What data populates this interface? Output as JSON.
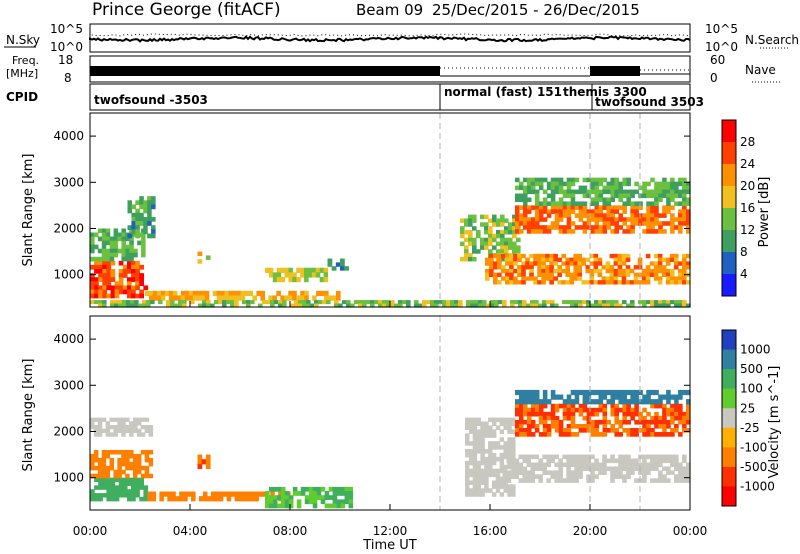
{
  "header": {
    "station": "Prince George (fitACF)",
    "beam_label": "Beam 09",
    "date_range": "25/Dec/2015 - 26/Dec/2015"
  },
  "side_labels": {
    "nsky": "N.Sky",
    "nsearch": "N.Search",
    "freq": "Freq.",
    "freq_unit": "[MHz]",
    "nave": "Nave",
    "cpid": "CPID"
  },
  "noise_panel": {
    "left_ticks": [
      "10^5",
      "10^0"
    ],
    "right_ticks": [
      "10^5",
      "10^0"
    ]
  },
  "freq_panel": {
    "left_ticks": [
      "18",
      "8"
    ],
    "right_ticks": [
      "60",
      "0"
    ]
  },
  "cpid_panel": {
    "segments": [
      {
        "label": "twofsound -3503",
        "start_hour": 0,
        "end_hour": 14
      },
      {
        "label": "normal (fast) 151",
        "start_hour": 14,
        "end_hour": 20
      },
      {
        "label": "themis 3300",
        "start_hour": 20,
        "end_hour": 22
      },
      {
        "label": "twofsound 3503",
        "start_hour": 20,
        "end_hour": 24
      }
    ]
  },
  "x_axis": {
    "ticks": [
      "00:00",
      "04:00",
      "08:00",
      "12:00",
      "16:00",
      "20:00",
      "00:00"
    ],
    "label": "Time UT"
  },
  "chart_data": [
    {
      "type": "heatmap",
      "title": "",
      "xlabel": "Time UT",
      "ylabel": "Slant Range [km]",
      "xlim": [
        0,
        24
      ],
      "ylim": [
        300,
        4500
      ],
      "yticks": [
        "1000",
        "2000",
        "3000",
        "4000"
      ],
      "colorbar": {
        "label": "Power [dB]",
        "ticks": [
          "4",
          "8",
          "12",
          "16",
          "20",
          "24",
          "28"
        ],
        "colors": [
          "#1a1aff",
          "#2060c0",
          "#3f9f5f",
          "#6cc040",
          "#f0c020",
          "#ff9000",
          "#ff4000",
          "#ff0000"
        ]
      },
      "echo_regions": [
        {
          "t0": 0.0,
          "t1": 2.3,
          "r0": 500,
          "r1": 1300,
          "value": 26
        },
        {
          "t0": 0.0,
          "t1": 2.2,
          "r0": 1300,
          "r1": 2000,
          "value": 12
        },
        {
          "t0": 1.5,
          "t1": 2.6,
          "r0": 1800,
          "r1": 2700,
          "value": 10
        },
        {
          "t0": 2.2,
          "t1": 10.0,
          "r0": 450,
          "r1": 650,
          "value": 20
        },
        {
          "t0": 4.3,
          "t1": 4.8,
          "r0": 1250,
          "r1": 1500,
          "value": 18
        },
        {
          "t0": 7.0,
          "t1": 9.5,
          "r0": 850,
          "r1": 1150,
          "value": 16
        },
        {
          "t0": 9.5,
          "t1": 10.5,
          "r0": 1100,
          "r1": 1350,
          "value": 10
        },
        {
          "t0": 0.0,
          "t1": 24.0,
          "r0": 300,
          "r1": 450,
          "value": 14
        },
        {
          "t0": 14.8,
          "t1": 17.2,
          "r0": 1300,
          "r1": 2300,
          "value": 14
        },
        {
          "t0": 15.8,
          "t1": 24.0,
          "r0": 800,
          "r1": 1450,
          "value": 22
        },
        {
          "t0": 17.0,
          "t1": 24.0,
          "r0": 1900,
          "r1": 2500,
          "value": 24
        },
        {
          "t0": 17.0,
          "t1": 24.0,
          "r0": 2500,
          "r1": 3100,
          "value": 12
        }
      ]
    },
    {
      "type": "heatmap",
      "title": "",
      "xlabel": "Time UT",
      "ylabel": "Slant Range [km]",
      "xlim": [
        0,
        24
      ],
      "ylim": [
        300,
        4500
      ],
      "yticks": [
        "1000",
        "2000",
        "3000",
        "4000"
      ],
      "colorbar": {
        "label": "Velocity [m s^-1]",
        "ticks": [
          "1000",
          "500",
          "100",
          "25",
          "-25",
          "-100",
          "-500",
          "-1000"
        ],
        "colors": [
          "#2040c0",
          "#2f7fa0",
          "#3faf5f",
          "#60cc30",
          "#c8c8c0",
          "#ffb000",
          "#ff8000",
          "#ff3000",
          "#ff0000"
        ]
      },
      "echo_regions": [
        {
          "t0": 0.0,
          "t1": 2.3,
          "r0": 500,
          "r1": 1000,
          "value": 150
        },
        {
          "t0": 0.0,
          "t1": 2.5,
          "r0": 1000,
          "r1": 1600,
          "value": -200
        },
        {
          "t0": 0.0,
          "t1": 2.5,
          "r0": 1900,
          "r1": 2300,
          "value": 0
        },
        {
          "t0": 2.3,
          "t1": 8.0,
          "r0": 500,
          "r1": 700,
          "value": -150
        },
        {
          "t0": 4.3,
          "t1": 4.8,
          "r0": 1200,
          "r1": 1500,
          "value": -300
        },
        {
          "t0": 7.0,
          "t1": 10.5,
          "r0": 350,
          "r1": 800,
          "value": 60
        },
        {
          "t0": 15.0,
          "t1": 17.0,
          "r0": 600,
          "r1": 2300,
          "value": 0
        },
        {
          "t0": 16.5,
          "t1": 24.0,
          "r0": 900,
          "r1": 1500,
          "value": 0
        },
        {
          "t0": 17.0,
          "t1": 24.0,
          "r0": 1900,
          "r1": 2600,
          "value": -300
        },
        {
          "t0": 17.0,
          "t1": 24.0,
          "r0": 2600,
          "r1": 2900,
          "value": 500
        }
      ]
    }
  ]
}
